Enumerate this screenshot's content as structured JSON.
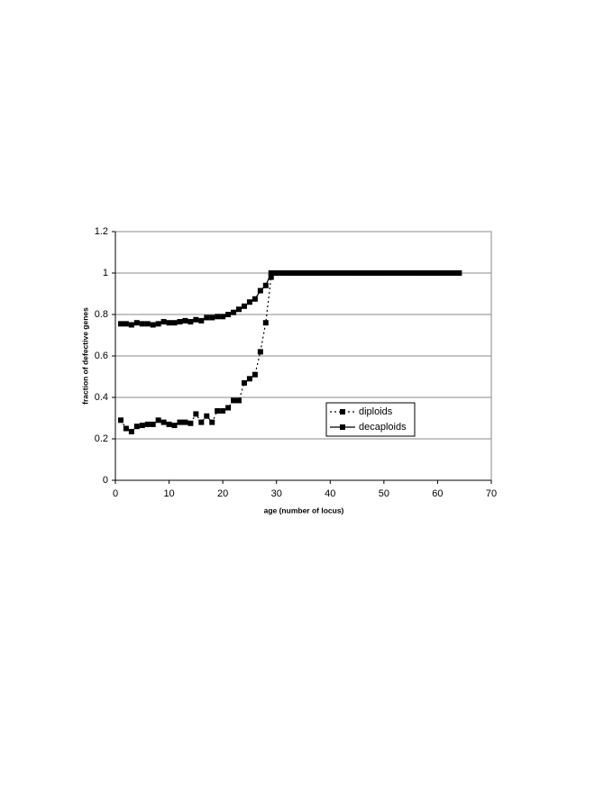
{
  "chart_data": {
    "type": "line",
    "x_label": "age (number of locus)",
    "y_label": "fraction of defective genes",
    "x": [
      1,
      2,
      3,
      4,
      5,
      6,
      7,
      8,
      9,
      10,
      11,
      12,
      13,
      14,
      15,
      16,
      17,
      18,
      19,
      20,
      21,
      22,
      23,
      24,
      25,
      26,
      27,
      28,
      29,
      30,
      31,
      32,
      33,
      34,
      35,
      36,
      37,
      38,
      39,
      40,
      41,
      42,
      43,
      44,
      45,
      46,
      47,
      48,
      49,
      50,
      51,
      52,
      53,
      54,
      55,
      56,
      57,
      58,
      59,
      60,
      61,
      62,
      63,
      64
    ],
    "series": [
      {
        "name": "diploids",
        "color": "#000000",
        "line_style": "dotted",
        "values": [
          0.29,
          0.25,
          0.235,
          0.26,
          0.265,
          0.27,
          0.27,
          0.29,
          0.28,
          0.27,
          0.265,
          0.28,
          0.28,
          0.275,
          0.32,
          0.28,
          0.31,
          0.28,
          0.335,
          0.335,
          0.35,
          0.385,
          0.385,
          0.47,
          0.49,
          0.51,
          0.62,
          0.76,
          0.98,
          1,
          1,
          1,
          1,
          1,
          1,
          1,
          1,
          1,
          1,
          1,
          1,
          1,
          1,
          1,
          1,
          1,
          1,
          1,
          1,
          1,
          1,
          1,
          1,
          1,
          1,
          1,
          1,
          1,
          1,
          1,
          1,
          1,
          1,
          1
        ]
      },
      {
        "name": "decaploids",
        "color": "#000000",
        "line_style": "solid",
        "values": [
          0.755,
          0.755,
          0.75,
          0.76,
          0.755,
          0.755,
          0.75,
          0.755,
          0.765,
          0.76,
          0.76,
          0.765,
          0.77,
          0.765,
          0.775,
          0.77,
          0.785,
          0.785,
          0.79,
          0.79,
          0.8,
          0.81,
          0.825,
          0.84,
          0.86,
          0.875,
          0.915,
          0.94,
          1,
          1,
          1,
          1,
          1,
          1,
          1,
          1,
          1,
          1,
          1,
          1,
          1,
          1,
          1,
          1,
          1,
          1,
          1,
          1,
          1,
          1,
          1,
          1,
          1,
          1,
          1,
          1,
          1,
          1,
          1,
          1,
          1,
          1,
          1,
          1
        ]
      }
    ],
    "xlim": [
      0,
      70
    ],
    "xticks": [
      0,
      10,
      20,
      30,
      40,
      50,
      60,
      70
    ],
    "ylim": [
      0,
      1.2
    ],
    "yticks": [
      0,
      0.2,
      0.4,
      0.6,
      0.8,
      1,
      1.2
    ],
    "grid": true,
    "legend": "right"
  }
}
